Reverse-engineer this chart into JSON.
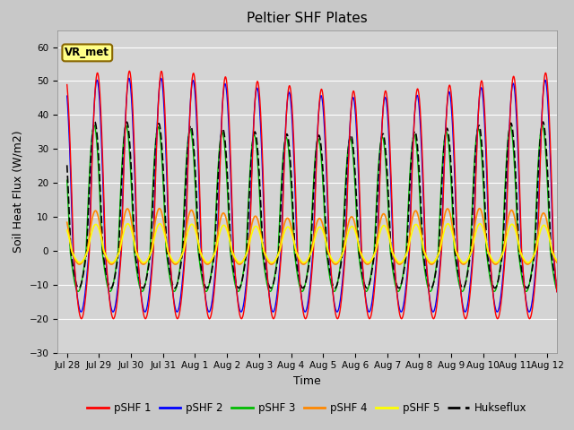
{
  "title": "Peltier SHF Plates",
  "xlabel": "Time",
  "ylabel": "Soil Heat Flux (W/m2)",
  "ylim": [
    -30,
    65
  ],
  "yticks": [
    -30,
    -20,
    -10,
    0,
    10,
    20,
    30,
    40,
    50,
    60
  ],
  "background_color": "#c8c8c8",
  "plot_bg_color": "#d4d4d4",
  "grid_color": "#ffffff",
  "series_colors": {
    "pSHF 1": "#ff0000",
    "pSHF 2": "#0000ff",
    "pSHF 3": "#00bb00",
    "pSHF 4": "#ff8800",
    "pSHF 5": "#ffff00",
    "Hukseflux": "#000000"
  },
  "vr_met_box_color": "#ffff88",
  "vr_met_border_color": "#886600",
  "xtick_labels": [
    "Jul 28",
    "Jul 29",
    "Jul 30",
    "Jul 31",
    "Aug 1",
    "Aug 2",
    "Aug 3",
    "Aug 4",
    "Aug 5",
    "Aug 6",
    "Aug 7",
    "Aug 8",
    "Aug 9",
    "Aug 10",
    "Aug 11",
    "Aug 12"
  ],
  "title_fontsize": 11,
  "axis_label_fontsize": 9,
  "tick_fontsize": 7.5,
  "legend_fontsize": 8.5,
  "figsize": [
    6.4,
    4.8
  ],
  "dpi": 100
}
